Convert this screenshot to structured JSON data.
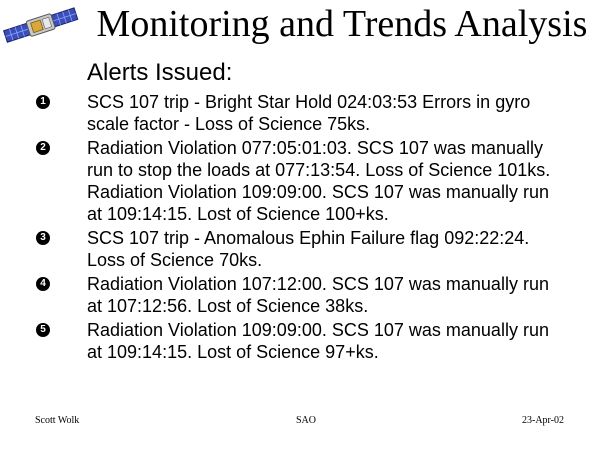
{
  "slide": {
    "title": "Monitoring and Trends Analysis",
    "subtitle": "Alerts Issued:",
    "logo_icon": "spacecraft-icon",
    "alerts": [
      {
        "marker": "1",
        "text": "SCS 107 trip - Bright Star Hold 024:03:53 Errors in gyro scale factor - Loss of Science 75ks."
      },
      {
        "marker": "2",
        "text": "Radiation Violation 077:05:01:03. SCS 107 was manually run to stop the loads at 077:13:54. Loss of Science 101ks. Radiation Violation 109:09:00.  SCS 107 was manually run at 109:14:15.  Lost of Science 100+ks."
      },
      {
        "marker": "3",
        "text": "SCS 107 trip - Anomalous Ephin Failure flag 092:22:24.  Loss of Science 70ks."
      },
      {
        "marker": "4",
        "text": "Radiation Violation 107:12:00.  SCS 107 was manually run at 107:12:56.  Lost of Science 38ks."
      },
      {
        "marker": "5",
        "text": "Radiation Violation 109:09:00.  SCS 107 was manually run at 109:14:15.  Lost of  Science 97+ks."
      }
    ]
  },
  "footer": {
    "author": "Scott Wolk",
    "org": "SAO",
    "date": "23-Apr-02"
  }
}
